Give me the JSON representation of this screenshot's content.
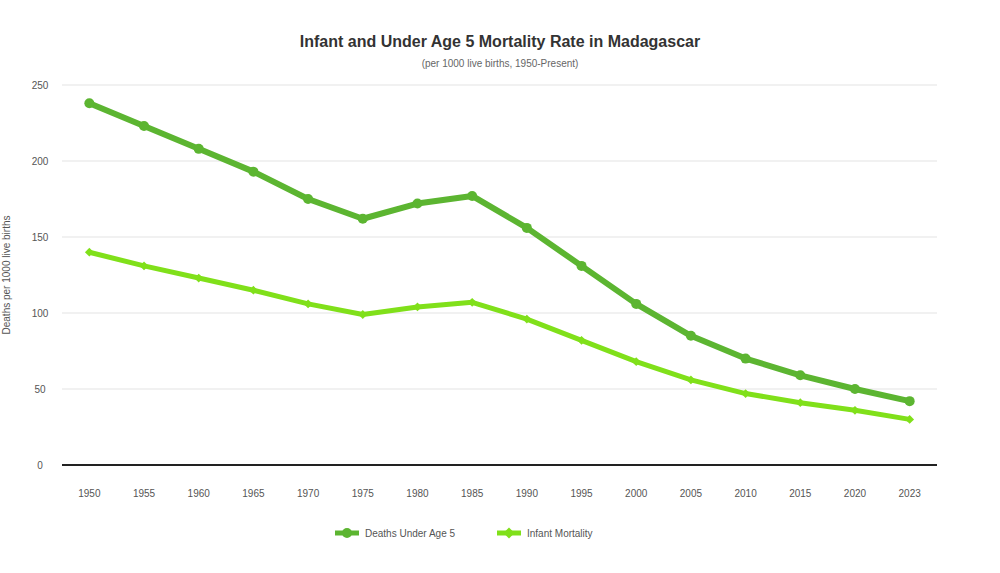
{
  "chart_data": {
    "type": "line",
    "title": "Infant and Under Age 5 Mortality Rate in Madagascar",
    "subtitle": "(per 1000 live births, 1950-Present)",
    "y_label": "Deaths per 1000 live births",
    "categories": [
      "1950",
      "1955",
      "1960",
      "1965",
      "1970",
      "1975",
      "1980",
      "1985",
      "1990",
      "1995",
      "2000",
      "2005",
      "2010",
      "2015",
      "2020",
      "2023"
    ],
    "series": [
      {
        "name": "Deaths Under Age 5",
        "color": "#5cb531",
        "marker": "circle",
        "values": [
          238,
          223,
          208,
          193,
          175,
          162,
          172,
          177,
          156,
          131,
          106,
          85,
          70,
          59,
          50,
          42
        ]
      },
      {
        "name": "Infant Mortality",
        "color": "#80e01a",
        "marker": "diamond",
        "values": [
          140,
          131,
          123,
          115,
          106,
          99,
          104,
          107,
          96,
          82,
          68,
          56,
          47,
          41,
          36,
          30
        ]
      }
    ],
    "ylim": [
      0,
      250
    ],
    "yticks": [
      0,
      50,
      100,
      150,
      200,
      250
    ],
    "grid": true,
    "legend": "bottom"
  }
}
